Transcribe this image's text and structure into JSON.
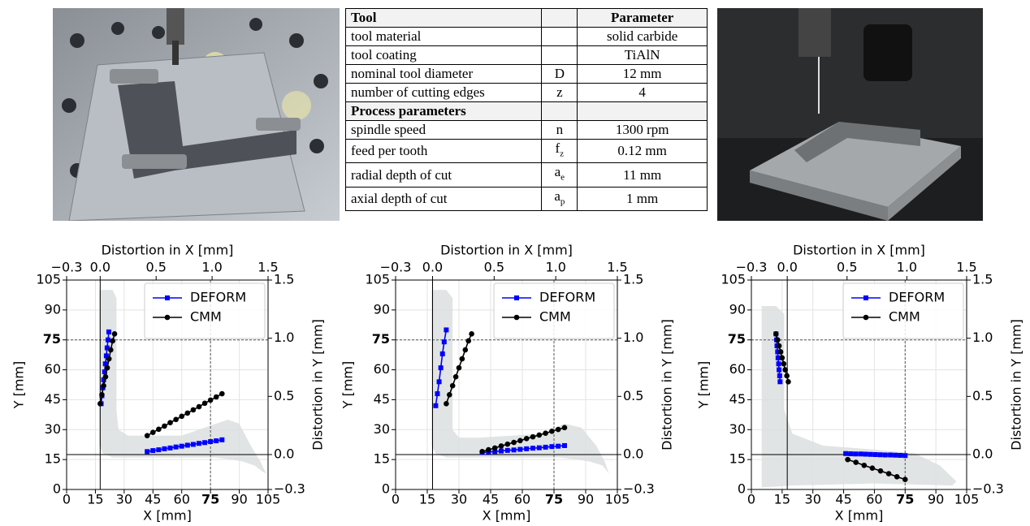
{
  "table": {
    "header": [
      "Tool",
      "Parameter"
    ],
    "tool_rows": [
      {
        "name": "tool material",
        "value": "solid carbide"
      },
      {
        "name": "tool coating",
        "value": "TiAlN"
      },
      {
        "name": "nominal tool diameter",
        "symbol": "D",
        "value": "12 mm"
      },
      {
        "name": "number of cutting edges",
        "symbol": "z",
        "value": "4"
      }
    ],
    "section": "Process parameters",
    "process_rows": [
      {
        "name": "spindle speed",
        "symbol": "n",
        "value": "1300 rpm"
      },
      {
        "name": "feed per tooth",
        "symbol": {
          "base": "f",
          "sub": "z"
        },
        "value": "0.12 mm"
      },
      {
        "name": "radial depth of cut",
        "symbol": {
          "base": "a",
          "sub": "e"
        },
        "value": "11 mm"
      },
      {
        "name": "axial depth of cut",
        "symbol": {
          "base": "a",
          "sub": "p"
        },
        "value": "1 mm"
      }
    ]
  },
  "chart_data": [
    {
      "type": "line",
      "x_label": "X [mm]",
      "y_label": "Y [mm]",
      "x2_label": "Distortion in X [mm]",
      "y2_label": "Distortion in Y [mm]",
      "xlim": [
        0,
        105
      ],
      "xticks": [
        0,
        15,
        30,
        45,
        60,
        75,
        90,
        105
      ],
      "ylim": [
        0,
        105
      ],
      "yticks": [
        0,
        15,
        30,
        45,
        60,
        75,
        90,
        105
      ],
      "x2lim": [
        -0.3,
        1.5
      ],
      "x2ticks": [
        {
          "value": -0.3,
          "label": "−0.3"
        },
        {
          "value": 0,
          "label": "0.0"
        },
        {
          "value": 0.5,
          "label": "0.5"
        },
        {
          "value": 1,
          "label": "1.0"
        },
        {
          "value": 1.5,
          "label": "1.5"
        }
      ],
      "y2lim": [
        -0.3,
        1.5
      ],
      "y2ticks": [
        {
          "value": -0.3,
          "label": "−0.3"
        },
        {
          "value": 0,
          "label": "0.0"
        },
        {
          "value": 0.5,
          "label": "0.5"
        },
        {
          "value": 1,
          "label": "1.0"
        },
        {
          "value": 1.5,
          "label": "1.5"
        }
      ],
      "grid": true,
      "bold_tick": 75,
      "legend": "upper right",
      "shape": {
        "color": "#dcdfdf",
        "x": [
          17,
          17,
          19,
          24,
          40,
          65,
          78,
          86,
          92,
          98,
          102,
          104,
          101,
          96,
          90,
          84,
          78,
          60,
          32,
          27,
          26,
          26,
          24
        ],
        "y": [
          100,
          22,
          18,
          16,
          16,
          16,
          16,
          15,
          14,
          12,
          9,
          8,
          14,
          22,
          33,
          35,
          33,
          27,
          27,
          30,
          40,
          96,
          100
        ]
      },
      "series": [
        {
          "name": "DEFORM",
          "color": "#0000ff",
          "marker": "square",
          "x": [
            18,
            18.4,
            18.9,
            19.3,
            19.8,
            20.2,
            20.7,
            21.1,
            21.6,
            22,
            null,
            42,
            45,
            48,
            51,
            54,
            57,
            60,
            63,
            66,
            69,
            72,
            75,
            78,
            81
          ],
          "y": [
            43,
            47,
            51,
            55,
            59,
            63,
            67,
            71,
            75,
            79,
            null,
            19,
            19.5,
            19.9,
            20.4,
            20.8,
            21.3,
            21.7,
            22.2,
            22.6,
            23.1,
            23.5,
            24,
            24.4,
            24.9
          ]
        },
        {
          "name": "CMM",
          "color": "#000000",
          "marker": "circle",
          "x": [
            17.5,
            18.4,
            19.3,
            20.3,
            21.2,
            22.1,
            23,
            24,
            25,
            null,
            42,
            45,
            48,
            51,
            54,
            57,
            60,
            63,
            66,
            69,
            72,
            75,
            78,
            81
          ],
          "y": [
            43,
            47.5,
            52,
            56.5,
            61,
            65.5,
            70,
            74.5,
            78,
            null,
            27,
            28.6,
            30.2,
            31.8,
            33.5,
            35.1,
            36.7,
            38.3,
            39.9,
            41.5,
            43.2,
            44.8,
            46.4,
            48
          ]
        }
      ]
    },
    {
      "type": "line",
      "x_label": "X [mm]",
      "y_label": "Y [mm]",
      "x2_label": "Distortion in X [mm]",
      "y2_label": "Distortion in Y [mm]",
      "xlim": [
        0,
        105
      ],
      "xticks": [
        0,
        15,
        30,
        45,
        60,
        75,
        90,
        105
      ],
      "ylim": [
        0,
        105
      ],
      "yticks": [
        0,
        15,
        30,
        45,
        60,
        75,
        90,
        105
      ],
      "x2lim": [
        -0.3,
        1.5
      ],
      "x2ticks": [
        {
          "value": -0.3,
          "label": "−0.3"
        },
        {
          "value": 0,
          "label": "0.0"
        },
        {
          "value": 0.5,
          "label": "0.5"
        },
        {
          "value": 1,
          "label": "1.0"
        },
        {
          "value": 1.5,
          "label": "1.5"
        }
      ],
      "y2lim": [
        -0.3,
        1.5
      ],
      "y2ticks": [
        {
          "value": -0.3,
          "label": "−0.3"
        },
        {
          "value": 0,
          "label": "0.0"
        },
        {
          "value": 0.5,
          "label": "0.5"
        },
        {
          "value": 1,
          "label": "1.0"
        },
        {
          "value": 1.5,
          "label": "1.5"
        }
      ],
      "grid": true,
      "bold_tick": 75,
      "legend": "upper right",
      "shape": {
        "color": "#dcdfdf",
        "x": [
          17,
          17,
          19,
          24,
          40,
          65,
          78,
          86,
          92,
          98,
          101,
          99,
          95,
          88,
          80,
          70,
          40,
          30,
          27,
          27,
          24
        ],
        "y": [
          100,
          22,
          18,
          16,
          16,
          16,
          16,
          15,
          14,
          12,
          8,
          14,
          22,
          31,
          33,
          28,
          26,
          26,
          30,
          96,
          100
        ]
      },
      "series": [
        {
          "name": "DEFORM",
          "color": "#0000ff",
          "marker": "square",
          "x": [
            19,
            19.8,
            20.6,
            21.4,
            22.2,
            23,
            24,
            null,
            41,
            44,
            47,
            50,
            53,
            56,
            59,
            62,
            65,
            68,
            71,
            74,
            77,
            80
          ],
          "y": [
            42,
            48,
            54,
            61,
            68,
            74,
            80,
            null,
            18.5,
            18.8,
            19,
            19.3,
            19.6,
            19.8,
            20.1,
            20.4,
            20.7,
            20.9,
            21.2,
            21.5,
            21.7,
            22
          ]
        },
        {
          "name": "CMM",
          "color": "#000000",
          "marker": "circle",
          "x": [
            24,
            25.5,
            27,
            28.5,
            30,
            31.5,
            33,
            34.5,
            36,
            null,
            41,
            44,
            47,
            50,
            53,
            56,
            59,
            62,
            65,
            68,
            71,
            74,
            77,
            80
          ],
          "y": [
            43,
            47.5,
            52,
            56.5,
            61,
            65.5,
            70,
            74.5,
            78,
            null,
            19,
            19.9,
            20.8,
            21.8,
            22.7,
            23.6,
            24.5,
            25.5,
            26.4,
            27.3,
            28.2,
            29.2,
            30.1,
            31
          ]
        }
      ]
    },
    {
      "type": "line",
      "x_label": "X [mm]",
      "y_label": "Y [mm]",
      "x2_label": "Distortion in X [mm]",
      "y2_label": "Distortion in Y [mm]",
      "xlim": [
        0,
        105
      ],
      "xticks": [
        0,
        15,
        30,
        45,
        60,
        75,
        90,
        105
      ],
      "ylim": [
        0,
        105
      ],
      "yticks": [
        0,
        15,
        30,
        45,
        60,
        75,
        90,
        105
      ],
      "x2lim": [
        -0.3,
        1.5
      ],
      "x2ticks": [
        {
          "value": -0.3,
          "label": "−0.3"
        },
        {
          "value": 0,
          "label": "0.0"
        },
        {
          "value": 0.5,
          "label": "0.5"
        },
        {
          "value": 1,
          "label": "1.0"
        },
        {
          "value": 1.5,
          "label": "1.5"
        }
      ],
      "y2lim": [
        -0.3,
        1.5
      ],
      "y2ticks": [
        {
          "value": -0.3,
          "label": "−0.3"
        },
        {
          "value": 0,
          "label": "0.0"
        },
        {
          "value": 0.5,
          "label": "0.5"
        },
        {
          "value": 1,
          "label": "1.0"
        },
        {
          "value": 1.5,
          "label": "1.5"
        }
      ],
      "grid": true,
      "bold_tick": 75,
      "legend": "upper right",
      "shape": {
        "color": "#dcdfdf",
        "x": [
          5,
          12,
          16,
          16,
          20,
          35,
          60,
          80,
          92,
          100,
          98,
          60,
          20,
          5
        ],
        "y": [
          92,
          92,
          88,
          40,
          28,
          22,
          20,
          18,
          12,
          4,
          2,
          3,
          2,
          1
        ]
      },
      "series": [
        {
          "name": "DEFORM",
          "color": "#0000ff",
          "marker": "square",
          "x": [
            12,
            12.3,
            12.5,
            12.8,
            13,
            13.3,
            13.5,
            13.8,
            14,
            null,
            46,
            48.4,
            50.8,
            53.3,
            55.7,
            58.1,
            60.5,
            62.9,
            65.3,
            67.8,
            70.2,
            72.6,
            75
          ],
          "y": [
            78,
            75,
            72,
            69,
            66,
            63,
            60,
            57,
            54,
            null,
            18,
            17.9,
            17.8,
            17.8,
            17.7,
            17.6,
            17.5,
            17.4,
            17.3,
            17.3,
            17.2,
            17.1,
            17
          ]
        },
        {
          "name": "CMM",
          "color": "#000000",
          "marker": "circle",
          "x": [
            12,
            12.8,
            13.5,
            14.3,
            15,
            15.8,
            16.5,
            17.3,
            18,
            null,
            47,
            51,
            55,
            59,
            63,
            67,
            71,
            75
          ],
          "y": [
            78,
            75,
            72,
            69,
            66,
            63,
            60,
            57,
            54,
            null,
            15,
            13.6,
            12.1,
            10.7,
            9.3,
            7.9,
            6.4,
            5
          ]
        }
      ]
    }
  ]
}
